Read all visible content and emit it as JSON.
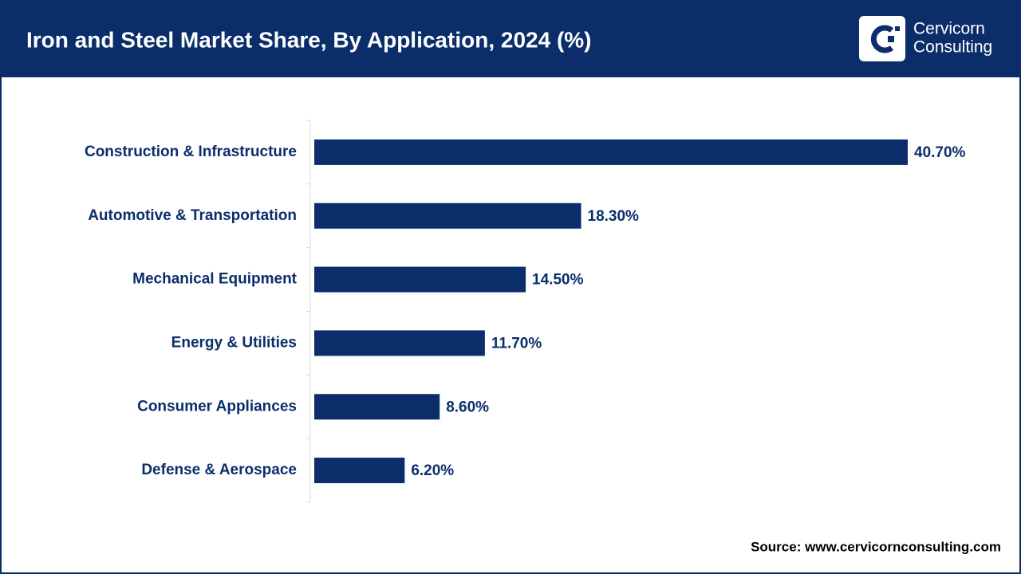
{
  "chart_data": {
    "type": "bar",
    "orientation": "horizontal",
    "title": "Iron and Steel Market Share, By Application, 2024 (%)",
    "categories": [
      "Construction & Infrastructure",
      "Automotive & Transportation",
      "Mechanical Equipment",
      "Energy & Utilities",
      "Consumer Appliances",
      "Defense & Aerospace"
    ],
    "values": [
      40.7,
      18.3,
      14.5,
      11.7,
      8.6,
      6.2
    ],
    "value_labels": [
      "40.70%",
      "18.30%",
      "14.50%",
      "11.70%",
      "8.60%",
      "6.20%"
    ],
    "color": "#0b2e6b",
    "source": "Source: www.cervicornconsulting.com"
  },
  "logo": [
    "Cervicorn",
    "Consulting"
  ]
}
